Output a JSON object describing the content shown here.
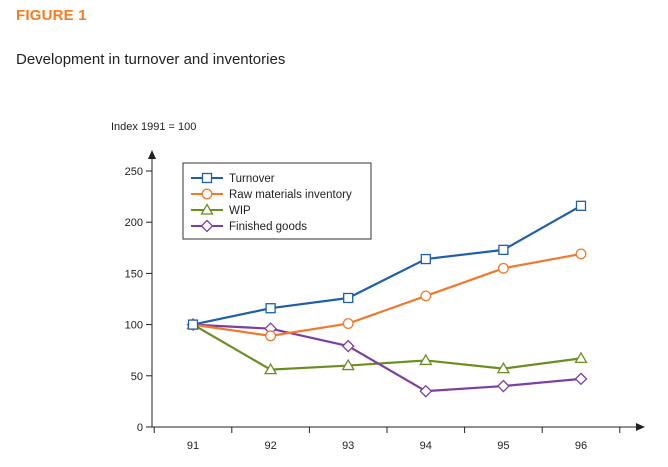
{
  "figure_label": "FIGURE 1",
  "title": "Development in turnover and inventories",
  "index_label": "Index 1991 = 100",
  "colors": {
    "figure_label": "#f47b20",
    "axis": "#222222"
  },
  "chart_data": {
    "type": "line",
    "x": [
      "91",
      "92",
      "93",
      "94",
      "95",
      "96"
    ],
    "ylim": [
      0,
      250
    ],
    "yticks": [
      0,
      50,
      100,
      150,
      200,
      250
    ],
    "ylabel": "Index 1991 = 100",
    "grid": false,
    "legend_position": "top-left",
    "series": [
      {
        "name": "Turnover",
        "color": "#1f5fa8",
        "marker": "square",
        "values": [
          100,
          116,
          126,
          164,
          173,
          216
        ]
      },
      {
        "name": "Raw materials inventory",
        "color": "#ef7a2e",
        "marker": "circle",
        "values": [
          100,
          89,
          101,
          128,
          155,
          169
        ]
      },
      {
        "name": "WIP",
        "color": "#6b8e23",
        "marker": "triangle",
        "values": [
          100,
          56,
          60,
          65,
          57,
          67
        ]
      },
      {
        "name": "Finished goods",
        "color": "#7b3fa0",
        "marker": "diamond",
        "values": [
          100,
          96,
          79,
          35,
          40,
          47
        ]
      }
    ]
  }
}
